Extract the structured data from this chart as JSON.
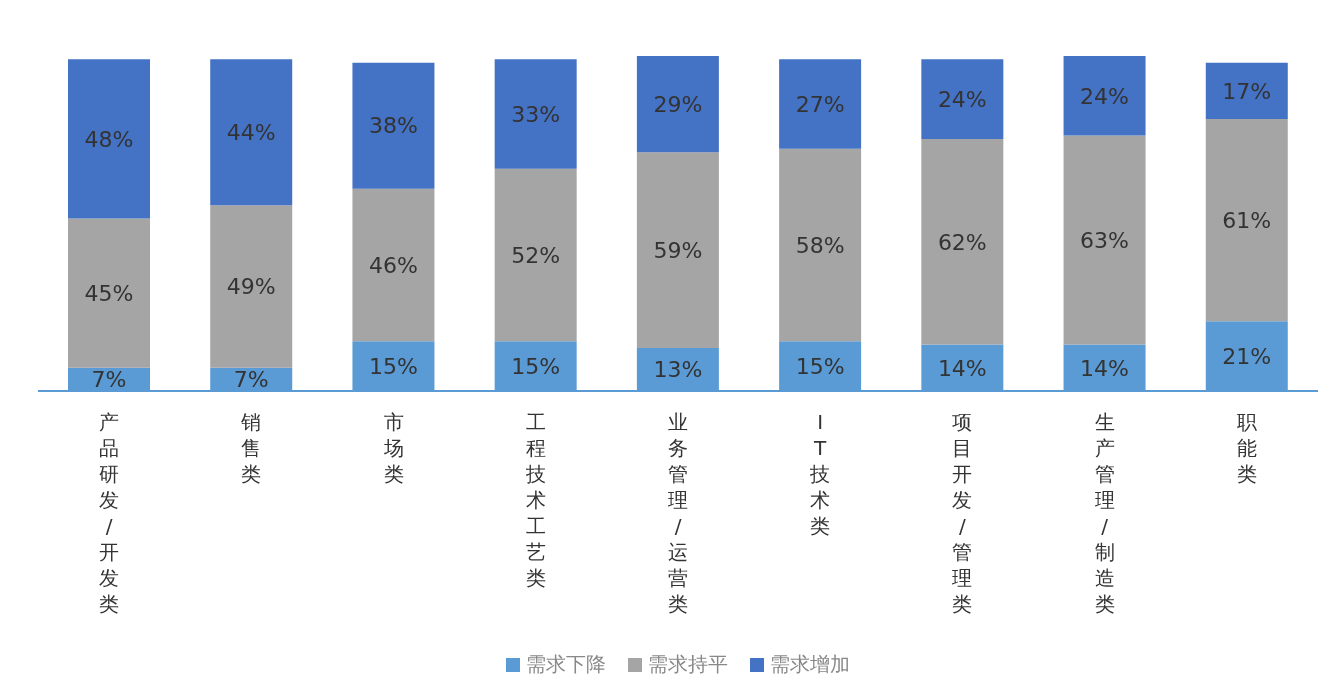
{
  "chart_data": {
    "type": "bar",
    "stacked": true,
    "categories": [
      "产品研发/开发类",
      "销售类",
      "市场类",
      "工程技术工艺类",
      "业务管理/运营类",
      "IT技术类",
      "项目开发/管理类",
      "生产管理/制造类",
      "职能类"
    ],
    "series": [
      {
        "name": "需求下降",
        "color": "#5b9bd5",
        "values": [
          7,
          7,
          15,
          15,
          13,
          15,
          14,
          14,
          21
        ],
        "value_labels": [
          "7%",
          "7%",
          "15%",
          "15%",
          "13%",
          "15%",
          "14%",
          "14%",
          "21%"
        ]
      },
      {
        "name": "需求持平",
        "color": "#a5a5a5",
        "values": [
          45,
          49,
          46,
          52,
          59,
          58,
          62,
          63,
          61
        ],
        "value_labels": [
          "45%",
          "49%",
          "46%",
          "52%",
          "59%",
          "58%",
          "62%",
          "63%",
          "61%"
        ]
      },
      {
        "name": "需求增加",
        "color": "#4472c4",
        "values": [
          48,
          44,
          38,
          33,
          29,
          27,
          24,
          24,
          17
        ],
        "value_labels": [
          "48%",
          "44%",
          "38%",
          "33%",
          "29%",
          "27%",
          "24%",
          "24%",
          "17%"
        ]
      }
    ],
    "legend": "bottom"
  }
}
